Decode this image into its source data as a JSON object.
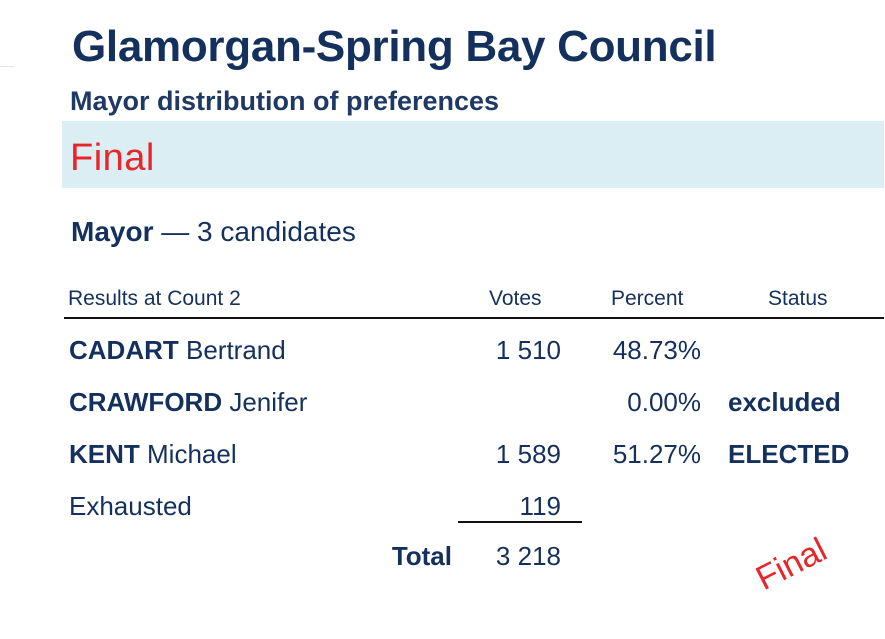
{
  "council_name": "Glamorgan-Spring Bay Council",
  "report_title": "Mayor distribution of preferences",
  "banner_status": "Final",
  "contest": {
    "office": "Mayor",
    "dash": " — ",
    "candidates_text": "3 candidates"
  },
  "table": {
    "header": {
      "label": "Results at Count 2",
      "votes": "Votes",
      "percent": "Percent",
      "status": "Status"
    },
    "rows": [
      {
        "surname": "CADART",
        "given": " Bertrand",
        "votes": "1 510",
        "percent": "48.73%",
        "status": ""
      },
      {
        "surname": "CRAWFORD",
        "given": " Jenifer",
        "votes": "",
        "percent": "0.00%",
        "status": "excluded"
      },
      {
        "surname": "KENT",
        "given": " Michael",
        "votes": "1 589",
        "percent": "51.27%",
        "status": "ELECTED"
      }
    ],
    "exhausted": {
      "label": "Exhausted",
      "votes": "119"
    },
    "total": {
      "label": "Total",
      "votes": "3 218"
    }
  },
  "stamp_text": "Final",
  "colors": {
    "title": "#14305c",
    "banner_bg": "#dbeef3",
    "final_red": "#e8252a"
  }
}
